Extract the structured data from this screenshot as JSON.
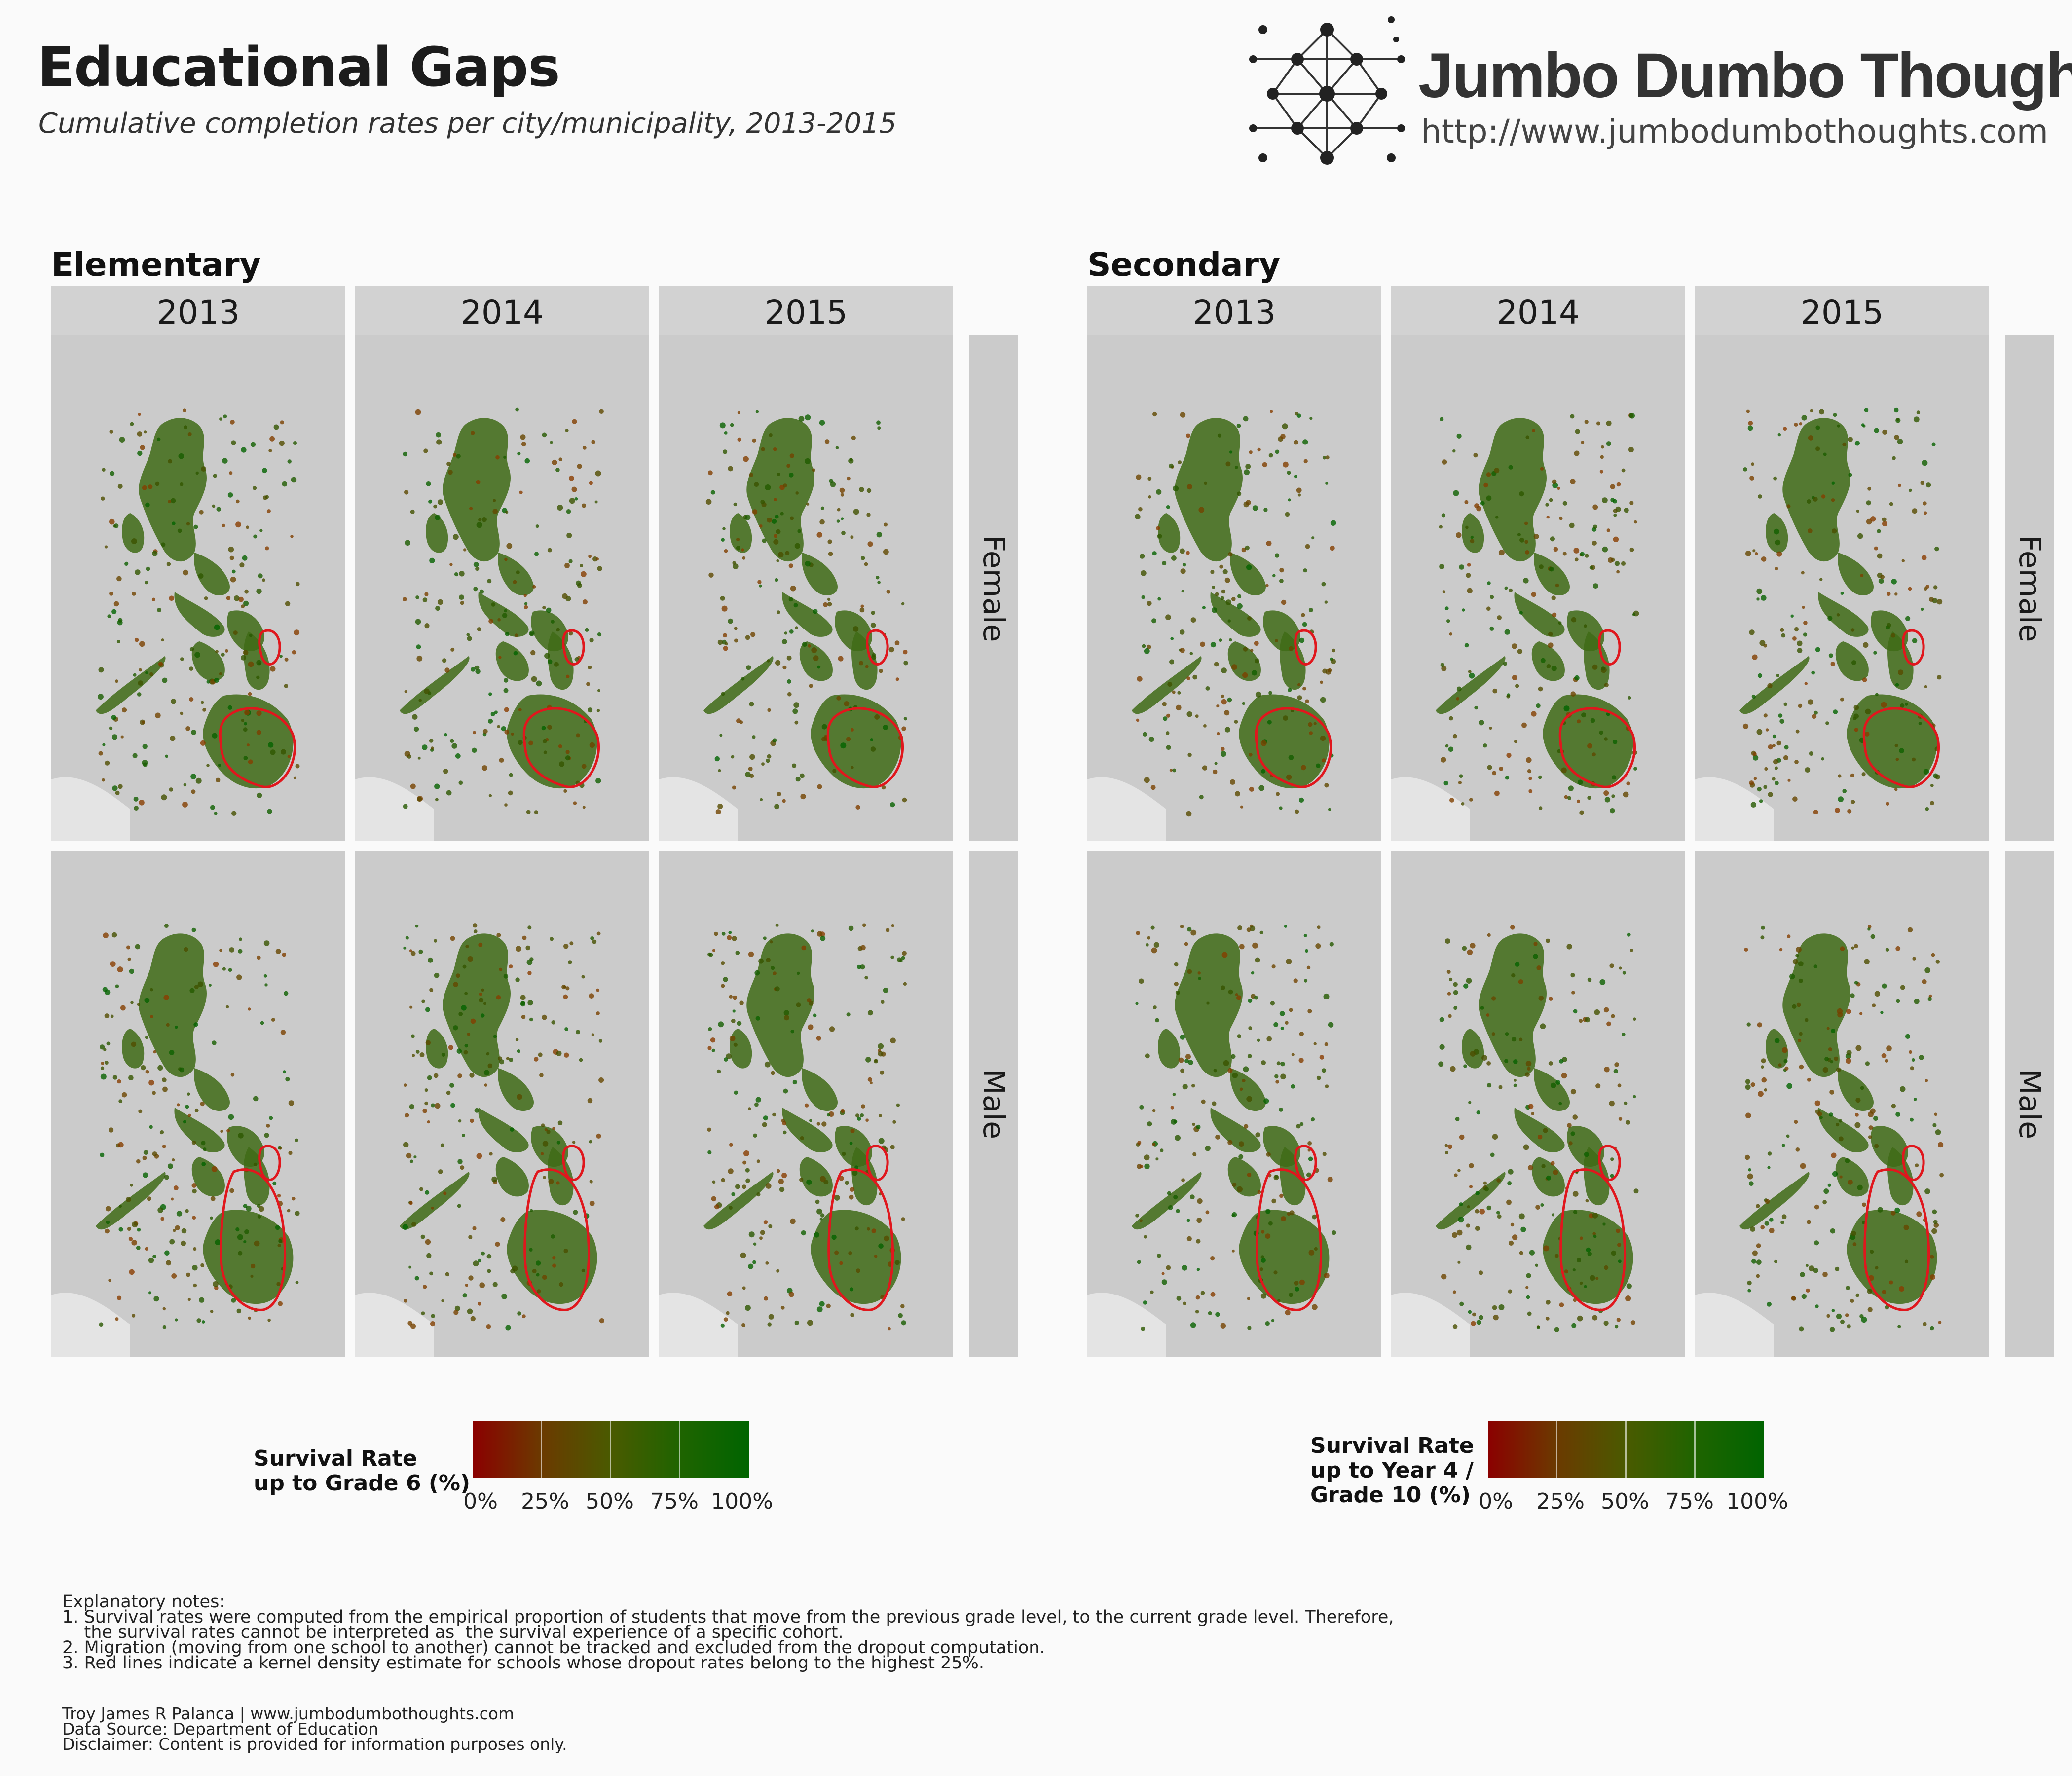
{
  "title": "Educational Gaps",
  "subtitle": "Cumulative completion rates per city/municipality, 2013-2015",
  "logo": {
    "name": "Jumbo Dumbo Thoughts",
    "url": "http://www.jumbodumbothoughts.com",
    "icon": "network-graph-icon"
  },
  "sections": [
    {
      "title": "Elementary",
      "years": [
        "2013",
        "2014",
        "2015"
      ],
      "rows": [
        "Female",
        "Male"
      ],
      "legend": {
        "title_lines": [
          "Survival Rate",
          "up to Grade 6 (%)"
        ],
        "ticks": [
          "0%",
          "25%",
          "50%",
          "75%",
          "100%"
        ]
      }
    },
    {
      "title": "Secondary",
      "years": [
        "2013",
        "2014",
        "2015"
      ],
      "rows": [
        "Female",
        "Male"
      ],
      "legend": {
        "title_lines": [
          "Survival Rate",
          "up to Year 4 /",
          "Grade 10 (%)"
        ],
        "ticks": [
          "0%",
          "25%",
          "50%",
          "75%",
          "100%"
        ]
      }
    }
  ],
  "colors": {
    "scale_low": "#8b0000",
    "scale_high": "#006400",
    "density_outline": "#e0171d",
    "panel_bg": "#cbcbcb"
  },
  "notes": {
    "heading": "Explanatory notes:",
    "lines": [
      "1. Survival rates were computed from the empirical proportion of students that move from the previous grade level, to the current grade level. Therefore,",
      "    the survival rates cannot be interpreted as  the survival experience of a specific cohort.",
      "2. Migration (moving from one school to another) cannot be tracked and excluded from the dropout computation.",
      "3. Red lines indicate a kernel density estimate for schools whose dropout rates belong to the highest 25%."
    ]
  },
  "credits": {
    "author": "Troy James R Palanca | www.jumbodumbothoughts.com",
    "source": "Data Source: Department of Education",
    "disclaimer": "Disclaimer: Content is provided for information purposes only."
  }
}
